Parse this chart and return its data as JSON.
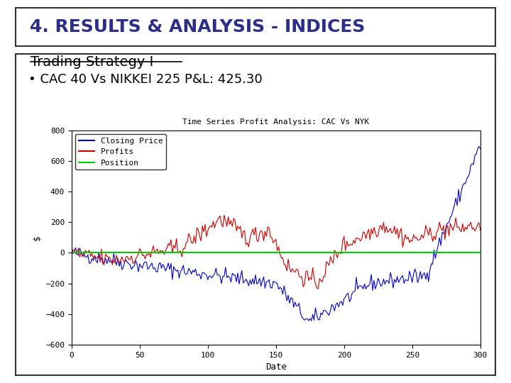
{
  "title_header": "4. RESULTS & ANALYSIS - INDICES",
  "title_header_color": "#2d2d8b",
  "section_title": "Trading Strategy I",
  "bullet_text": "CAC 40 Vs NIKKEI 225 P&L: 425.30",
  "chart_title": "Time Series Profit Analysis: CAC Vs NYK",
  "xlabel": "Date",
  "ylabel": "$",
  "ylim": [
    -600,
    800
  ],
  "xlim": [
    0,
    300
  ],
  "xticks": [
    0,
    50,
    100,
    150,
    200,
    250,
    300
  ],
  "yticks": [
    -600,
    -400,
    -200,
    0,
    200,
    400,
    600,
    800
  ],
  "legend_labels": [
    "Closing Price",
    "Profits",
    "Position"
  ],
  "legend_colors": [
    "#0000cc",
    "#cc0000",
    "#00cc00"
  ],
  "background_color": "#ffffff",
  "seed": 42
}
